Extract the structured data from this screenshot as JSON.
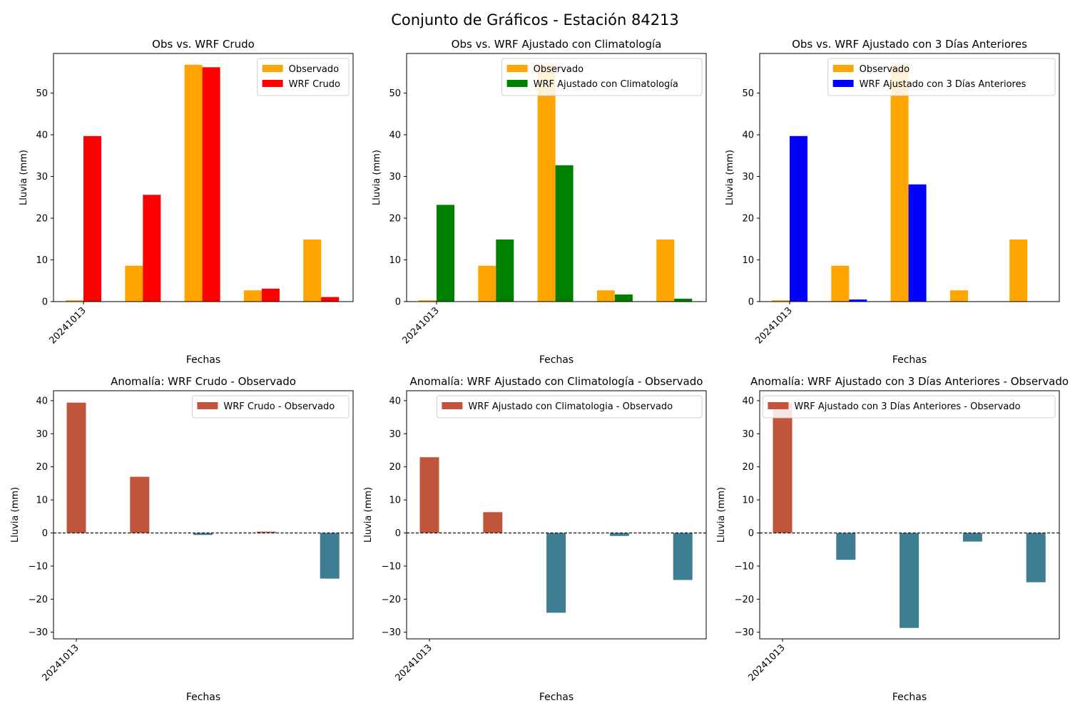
{
  "figure": {
    "title": "Conjunto de Gráficos - Estación 84213"
  },
  "chart_data": [
    {
      "type": "bar",
      "title": "Obs vs. WRF Crudo",
      "xlabel": "Fechas",
      "ylabel": "Lluvia (mm)",
      "ylim": [
        0,
        59.5
      ],
      "yticks": [
        0,
        10,
        20,
        30,
        40,
        50
      ],
      "xtick_labels": [
        "20241013"
      ],
      "legend_position": "upper right",
      "categories": [
        "1",
        "2",
        "3",
        "4",
        "5"
      ],
      "series": [
        {
          "name": "Observado",
          "color": "#FFA500",
          "values": [
            0.3,
            8.6,
            56.8,
            2.7,
            14.9
          ]
        },
        {
          "name": "WRF Crudo",
          "color": "#FF0000",
          "values": [
            39.7,
            25.6,
            56.2,
            3.1,
            1.1
          ]
        }
      ]
    },
    {
      "type": "bar",
      "title": "Obs vs. WRF Ajustado con Climatología",
      "xlabel": "Fechas",
      "ylabel": "Lluvia (mm)",
      "ylim": [
        0,
        59.5
      ],
      "yticks": [
        0,
        10,
        20,
        30,
        40,
        50
      ],
      "xtick_labels": [
        "20241013"
      ],
      "legend_position": "upper right",
      "categories": [
        "1",
        "2",
        "3",
        "4",
        "5"
      ],
      "series": [
        {
          "name": "Observado",
          "color": "#FFA500",
          "values": [
            0.3,
            8.6,
            56.8,
            2.7,
            14.9
          ]
        },
        {
          "name": "WRF Ajustado con Climatología",
          "color": "#008000",
          "values": [
            23.2,
            14.9,
            32.7,
            1.7,
            0.7
          ]
        }
      ]
    },
    {
      "type": "bar",
      "title": "Obs vs. WRF Ajustado con 3 Días Anteriores",
      "xlabel": "Fechas",
      "ylabel": "Lluvia (mm)",
      "ylim": [
        0,
        59.5
      ],
      "yticks": [
        0,
        10,
        20,
        30,
        40,
        50
      ],
      "xtick_labels": [
        "20241013"
      ],
      "legend_position": "upper right",
      "categories": [
        "1",
        "2",
        "3",
        "4",
        "5"
      ],
      "series": [
        {
          "name": "Observado",
          "color": "#FFA500",
          "values": [
            0.3,
            8.6,
            56.8,
            2.7,
            14.9
          ]
        },
        {
          "name": "WRF Ajustado con 3 Días Anteriores",
          "color": "#0000FF",
          "values": [
            39.7,
            0.5,
            28.1,
            0.0,
            0.0
          ]
        }
      ]
    },
    {
      "type": "bar",
      "title": "Anomalía: WRF Crudo - Observado",
      "xlabel": "Fechas",
      "ylabel": "Lluvia (mm)",
      "ylim": [
        -32,
        43
      ],
      "yticks": [
        -30,
        -20,
        -10,
        0,
        10,
        20,
        30,
        40
      ],
      "xtick_labels": [
        "20241013"
      ],
      "legend_position": "upper right",
      "zero_line": true,
      "positive_color": "#C1553C",
      "negative_color": "#3D7E93",
      "categories": [
        "1",
        "2",
        "3",
        "4",
        "5"
      ],
      "series": [
        {
          "name": "WRF Crudo - Observado",
          "color": "#C1553C",
          "values": [
            39.4,
            17.0,
            -0.6,
            0.4,
            -13.8
          ]
        }
      ]
    },
    {
      "type": "bar",
      "title": "Anomalía: WRF Ajustado con Climatología - Observado",
      "xlabel": "Fechas",
      "ylabel": "Lluvia (mm)",
      "ylim": [
        -32,
        43
      ],
      "yticks": [
        -30,
        -20,
        -10,
        0,
        10,
        20,
        30,
        40
      ],
      "xtick_labels": [
        "20241013"
      ],
      "legend_position": "upper right",
      "zero_line": true,
      "positive_color": "#C1553C",
      "negative_color": "#3D7E93",
      "categories": [
        "1",
        "2",
        "3",
        "4",
        "5"
      ],
      "series": [
        {
          "name": "WRF Ajustado con Climatologia - Observado",
          "color": "#C1553C",
          "values": [
            22.9,
            6.3,
            -24.1,
            -0.9,
            -14.2
          ]
        }
      ]
    },
    {
      "type": "bar",
      "title": "Anomalía: WRF Ajustado con 3 Días Anteriores - Observado",
      "xlabel": "Fechas",
      "ylabel": "Lluvia (mm)",
      "ylim": [
        -32,
        43
      ],
      "yticks": [
        -30,
        -20,
        -10,
        0,
        10,
        20,
        30,
        40
      ],
      "xtick_labels": [
        "20241013"
      ],
      "legend_position": "upper right",
      "zero_line": true,
      "positive_color": "#C1553C",
      "negative_color": "#3D7E93",
      "categories": [
        "1",
        "2",
        "3",
        "4",
        "5"
      ],
      "series": [
        {
          "name": "WRF Ajustado con 3 Días Anteriores - Observado",
          "color": "#C1553C",
          "values": [
            39.4,
            -8.1,
            -28.7,
            -2.6,
            -14.9
          ]
        }
      ]
    }
  ]
}
